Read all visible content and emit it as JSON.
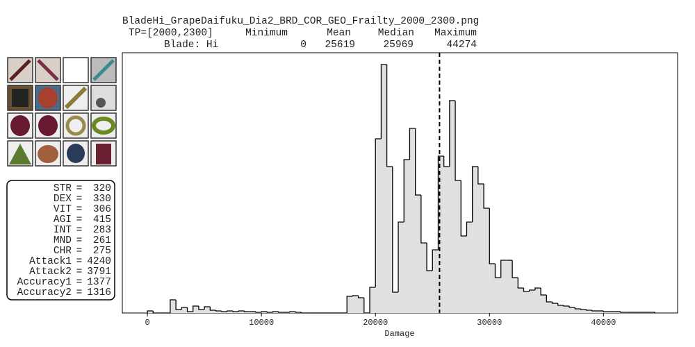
{
  "title": "BladeHi_GrapeDaifuku_Dia2_BRD_COR_GEO_Frailty_2000_2300.png",
  "summary": {
    "header_label": "TP=[2000,2300]",
    "columns": [
      "Minimum",
      "Mean",
      "Median",
      "Maximum"
    ],
    "row_label": "Blade: Hi",
    "values": [
      0,
      25619,
      25969,
      44274
    ]
  },
  "stats_separator": "=",
  "stats": [
    {
      "label": "STR",
      "value": 320
    },
    {
      "label": "DEX",
      "value": 330
    },
    {
      "label": "VIT",
      "value": 306
    },
    {
      "label": "AGI",
      "value": 415
    },
    {
      "label": "INT",
      "value": 283
    },
    {
      "label": "MND",
      "value": 261
    },
    {
      "label": "CHR",
      "value": 275
    },
    {
      "label": "Attack1",
      "value": 4240
    },
    {
      "label": "Attack2",
      "value": 3791
    },
    {
      "label": "Accuracy1",
      "value": 1377
    },
    {
      "label": "Accuracy2",
      "value": 1316
    }
  ],
  "chart_data": {
    "type": "histogram",
    "xlabel": "Damage",
    "color": "#e0e0e0",
    "bins": [
      0,
      500,
      1000,
      1500,
      2000,
      2500,
      3000,
      3500,
      4000,
      4500,
      5000,
      5500,
      6000,
      6500,
      7000,
      7500,
      8000,
      8500,
      9000,
      9500,
      10000,
      10500,
      11000,
      11500,
      12000,
      12500,
      13000,
      13500,
      14000,
      14500,
      15000,
      15500,
      16000,
      16500,
      17000,
      17500,
      18000,
      18500,
      19000,
      19500,
      20000,
      20500,
      21000,
      21500,
      22000,
      22500,
      23000,
      23500,
      24000,
      24500,
      25000,
      25500,
      26000,
      26500,
      27000,
      27500,
      28000,
      28500,
      29000,
      29500,
      30000,
      30500,
      31000,
      31500,
      32000,
      32500,
      33000,
      33500,
      34000,
      34500,
      35000,
      35500,
      36000,
      36500,
      37000,
      37500,
      38000,
      38500,
      39000,
      39500,
      40000,
      40500,
      41000,
      41500,
      42000,
      42500,
      43000,
      43500,
      44000,
      44500
    ],
    "values": [
      3,
      0,
      0,
      0,
      19,
      5,
      8,
      2,
      10,
      5,
      9,
      4,
      3,
      2,
      3,
      2,
      3,
      2,
      2,
      1,
      2,
      1,
      2,
      1,
      1,
      2,
      1,
      0,
      0,
      0,
      0,
      0,
      0,
      0,
      0,
      24,
      25,
      22,
      0,
      37,
      251,
      358,
      211,
      30,
      131,
      221,
      266,
      170,
      101,
      61,
      91,
      226,
      211,
      306,
      191,
      111,
      131,
      211,
      186,
      151,
      71,
      51,
      76,
      76,
      51,
      36,
      31,
      33,
      36,
      26,
      16,
      14,
      11,
      10,
      8,
      6,
      5,
      4,
      3,
      3,
      2,
      2,
      2,
      1,
      1,
      1,
      1,
      1,
      1
    ],
    "xlim": [
      -2200,
      46500
    ],
    "xticks": [
      0,
      10000,
      20000,
      30000,
      40000
    ],
    "ylim": [
      0,
      375
    ]
  }
}
